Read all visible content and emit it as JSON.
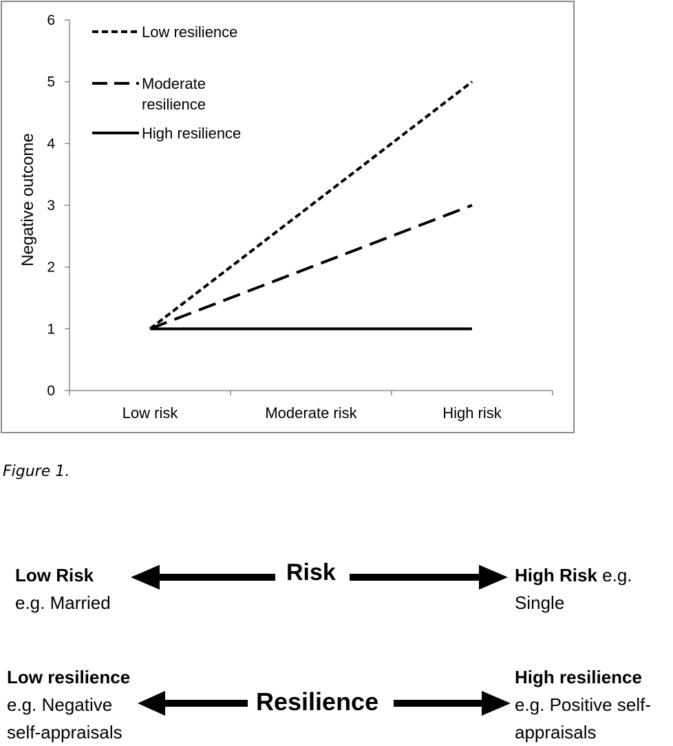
{
  "chart_data": {
    "type": "line",
    "categories": [
      "Low risk",
      "Moderate risk",
      "High risk"
    ],
    "ylabel": "Negative outcome",
    "xlabel": "",
    "ylim": [
      0,
      6
    ],
    "yticks": [
      0,
      1,
      2,
      3,
      4,
      5,
      6
    ],
    "grid": false,
    "legend_position": "top-left",
    "series": [
      {
        "name": "Low resilience",
        "values": [
          1,
          3,
          5
        ],
        "style": "dotted"
      },
      {
        "name": "Moderate resilience",
        "values": [
          1,
          2,
          3
        ],
        "style": "dashed"
      },
      {
        "name": "High resilience",
        "values": [
          1,
          1,
          1
        ],
        "style": "solid"
      }
    ]
  },
  "caption": "Figure 1.",
  "diagram": {
    "risk": {
      "center": "Risk",
      "left_bold": "Low Risk",
      "left_line2": "e.g. Married",
      "right_bold": "High Risk",
      "right_rest": " e.g.",
      "right_line2": "Single"
    },
    "resilience": {
      "center": "Resilience",
      "left_bold": "Low resilience",
      "left_line2": "e.g. Negative",
      "left_line3": "self-appraisals",
      "right_bold": "High resilience",
      "right_line2": "e.g. Positive self-",
      "right_line3": "appraisals"
    }
  }
}
